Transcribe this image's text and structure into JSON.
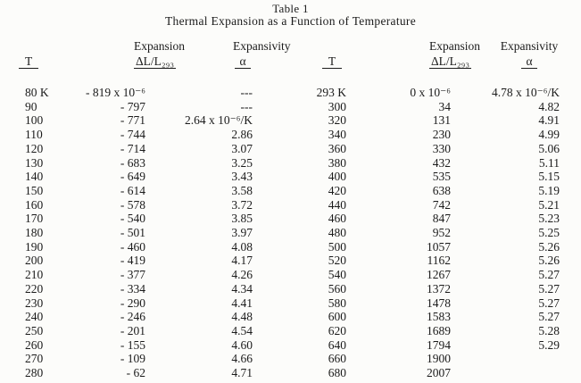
{
  "page": {
    "title": "Table 1",
    "subtitle": "Thermal Expansion as a Function of Temperature"
  },
  "columns": {
    "t": "T",
    "expansion": "Expansion",
    "expansion_ratio": "ΔL/L₂₉₃",
    "expansivity": "Expansivity",
    "alpha": "α"
  },
  "units": {
    "expansion_scale": "x 10⁻⁶",
    "expansivity_scale": "x 10⁻⁶/K"
  },
  "colors": {
    "paper": "#fcfcfa",
    "text": "#1b1b1b"
  },
  "rows": [
    {
      "t1": "80 K",
      "exp1": "- 819 x 10⁻⁶",
      "a1": "---",
      "t2": "293 K",
      "exp2": "0 x 10⁻⁶",
      "a2": "4.78 x 10⁻⁶/K"
    },
    {
      "t1": "90",
      "exp1": "- 797",
      "a1": "---",
      "t2": "300",
      "exp2": "34",
      "a2": "4.82"
    },
    {
      "t1": "100",
      "exp1": "- 771",
      "a1": "2.64 x 10⁻⁶/K",
      "t2": "320",
      "exp2": "131",
      "a2": "4.91"
    },
    {
      "t1": "110",
      "exp1": "- 744",
      "a1": "2.86",
      "t2": "340",
      "exp2": "230",
      "a2": "4.99"
    },
    {
      "t1": "120",
      "exp1": "- 714",
      "a1": "3.07",
      "t2": "360",
      "exp2": "330",
      "a2": "5.06"
    },
    {
      "t1": "130",
      "exp1": "- 683",
      "a1": "3.25",
      "t2": "380",
      "exp2": "432",
      "a2": "5.11"
    },
    {
      "t1": "140",
      "exp1": "- 649",
      "a1": "3.43",
      "t2": "400",
      "exp2": "535",
      "a2": "5.15"
    },
    {
      "t1": "150",
      "exp1": "- 614",
      "a1": "3.58",
      "t2": "420",
      "exp2": "638",
      "a2": "5.19"
    },
    {
      "t1": "160",
      "exp1": "- 578",
      "a1": "3.72",
      "t2": "440",
      "exp2": "742",
      "a2": "5.21"
    },
    {
      "t1": "170",
      "exp1": "- 540",
      "a1": "3.85",
      "t2": "460",
      "exp2": "847",
      "a2": "5.23"
    },
    {
      "t1": "180",
      "exp1": "- 501",
      "a1": "3.97",
      "t2": "480",
      "exp2": "952",
      "a2": "5.25"
    },
    {
      "t1": "190",
      "exp1": "- 460",
      "a1": "4.08",
      "t2": "500",
      "exp2": "1057",
      "a2": "5.26"
    },
    {
      "t1": "200",
      "exp1": "- 419",
      "a1": "4.17",
      "t2": "520",
      "exp2": "1162",
      "a2": "5.26"
    },
    {
      "t1": "210",
      "exp1": "- 377",
      "a1": "4.26",
      "t2": "540",
      "exp2": "1267",
      "a2": "5.27"
    },
    {
      "t1": "220",
      "exp1": "- 334",
      "a1": "4.34",
      "t2": "560",
      "exp2": "1372",
      "a2": "5.27"
    },
    {
      "t1": "230",
      "exp1": "- 290",
      "a1": "4.41",
      "t2": "580",
      "exp2": "1478",
      "a2": "5.27"
    },
    {
      "t1": "240",
      "exp1": "- 246",
      "a1": "4.48",
      "t2": "600",
      "exp2": "1583",
      "a2": "5.27"
    },
    {
      "t1": "250",
      "exp1": "- 201",
      "a1": "4.54",
      "t2": "620",
      "exp2": "1689",
      "a2": "5.28"
    },
    {
      "t1": "260",
      "exp1": "- 155",
      "a1": "4.60",
      "t2": "640",
      "exp2": "1794",
      "a2": "5.29"
    },
    {
      "t1": "270",
      "exp1": "- 109",
      "a1": "4.66",
      "t2": "660",
      "exp2": "1900",
      "a2": ""
    },
    {
      "t1": "280",
      "exp1": "- 62",
      "a1": "4.71",
      "t2": "680",
      "exp2": "2007",
      "a2": ""
    }
  ]
}
